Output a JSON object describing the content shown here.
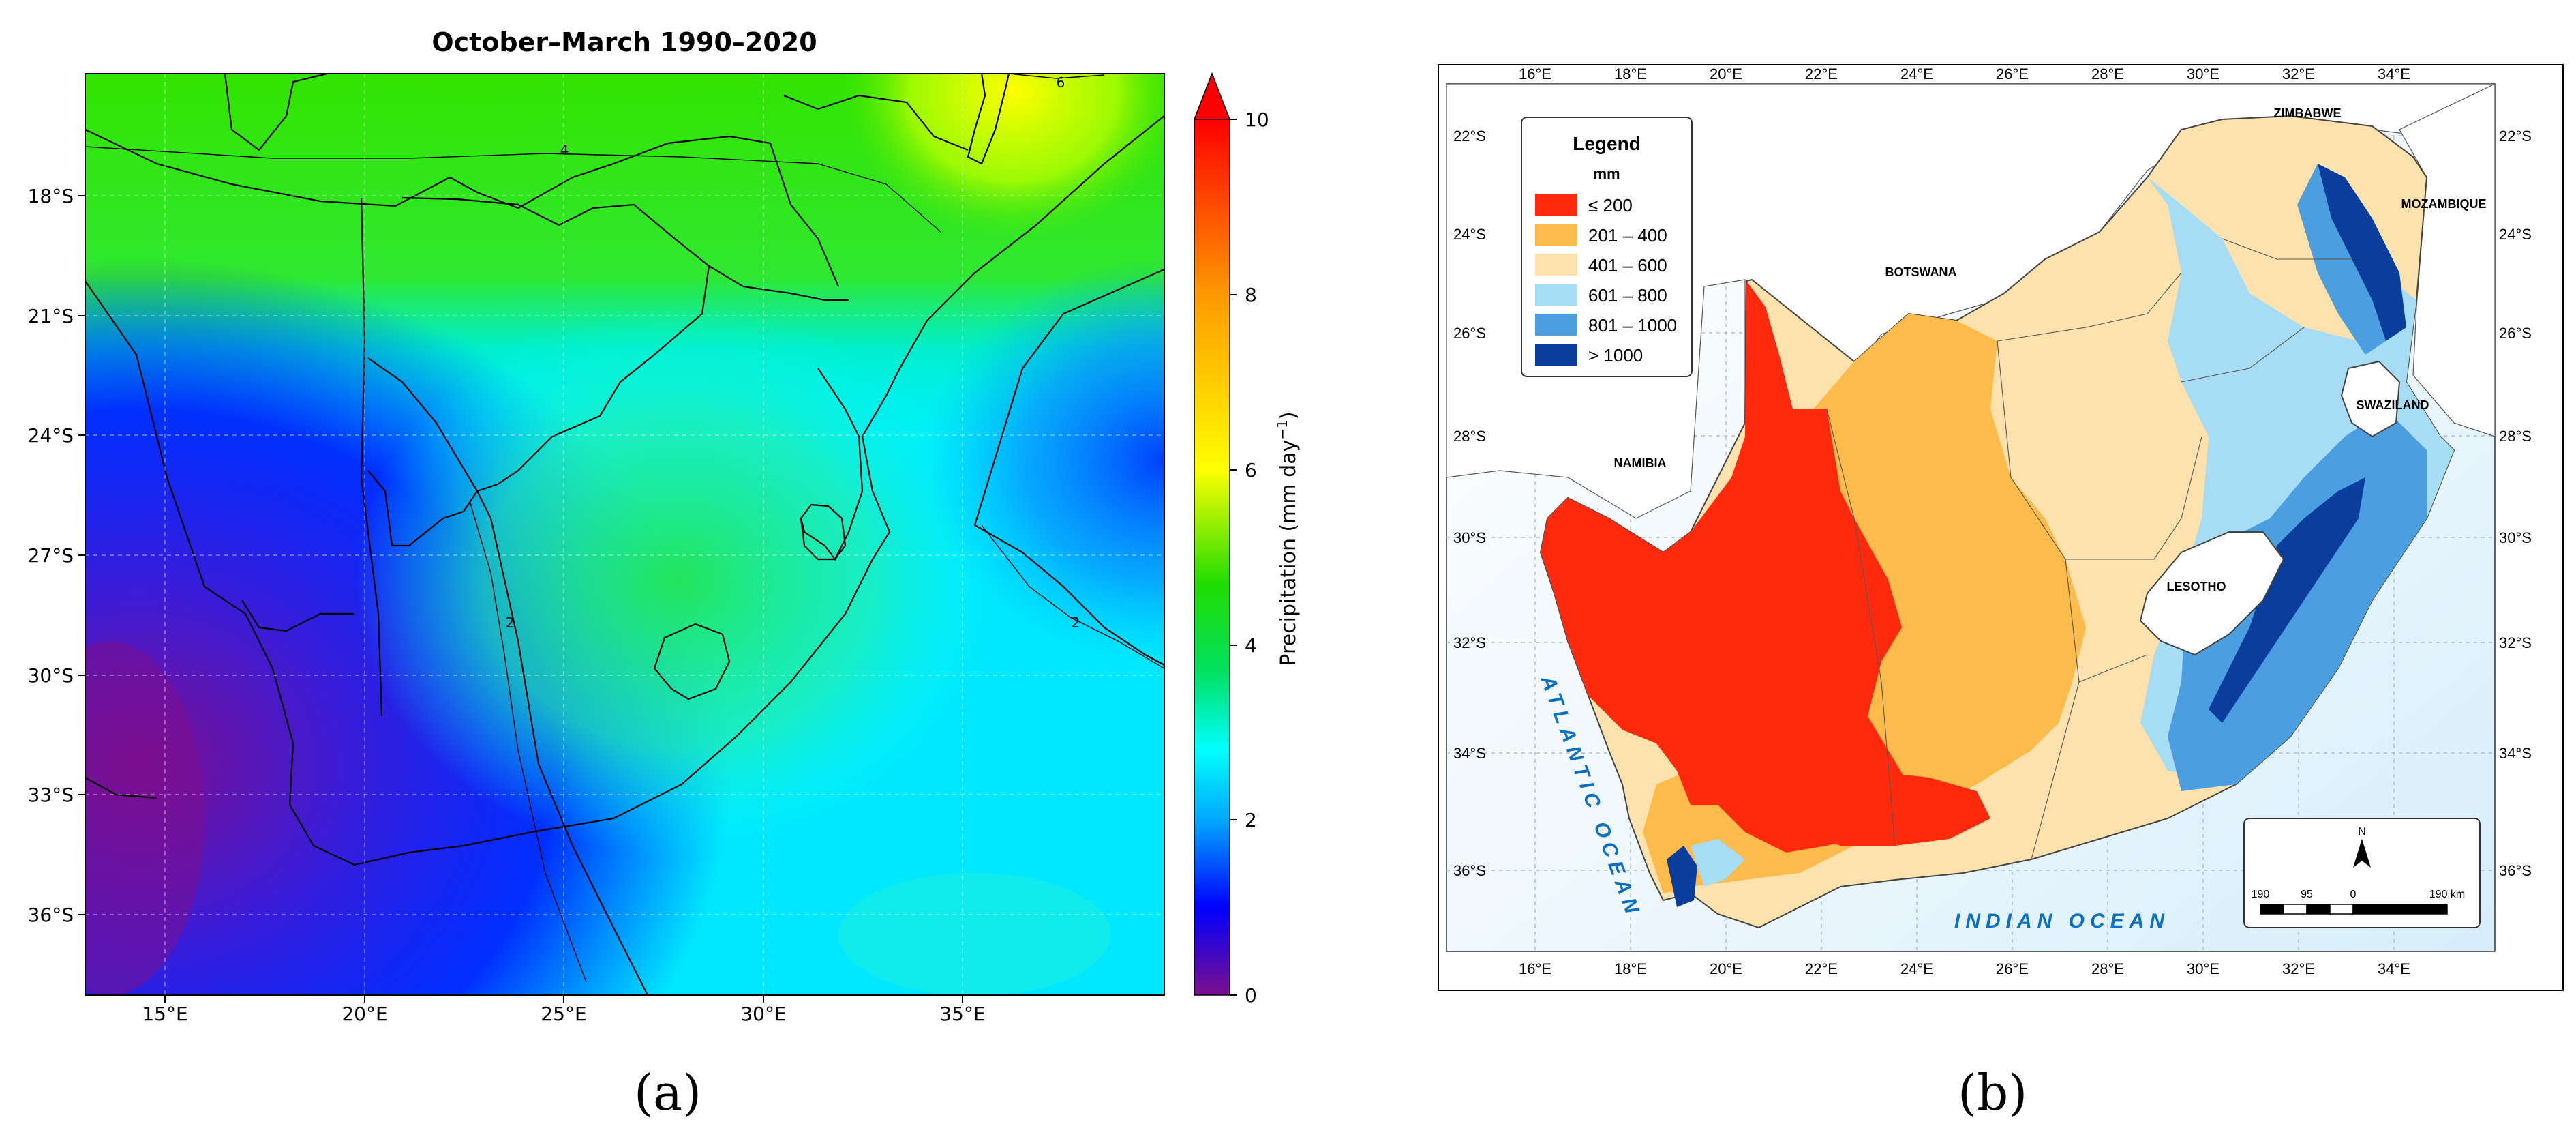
{
  "panel_a": {
    "caption": "(a)",
    "title": "October–March 1990–2020",
    "x_ticks": [
      "15°E",
      "20°E",
      "25°E",
      "30°E",
      "35°E"
    ],
    "y_ticks": [
      "18°S",
      "21°S",
      "24°S",
      "27°S",
      "30°S",
      "33°S",
      "36°S"
    ],
    "colorbar": {
      "label": "Precipitation (mm day",
      "label_sup": "−1",
      "label_close": ")",
      "ticks": [
        "0",
        "2",
        "4",
        "6",
        "8",
        "10"
      ],
      "colors": [
        "#7b0f8e",
        "#0000ff",
        "#00a8ff",
        "#00ffff",
        "#00e060",
        "#22dd00",
        "#ffff00",
        "#ff9900",
        "#ff0000"
      ]
    },
    "contour_labels": [
      "6",
      "4",
      "2",
      "2"
    ]
  },
  "panel_b": {
    "caption": "(b)",
    "x_ticks": [
      "16°E",
      "18°E",
      "20°E",
      "22°E",
      "24°E",
      "26°E",
      "28°E",
      "30°E",
      "32°E",
      "34°E"
    ],
    "y_ticks": [
      "22°S",
      "24°S",
      "26°S",
      "28°S",
      "30°S",
      "32°S",
      "34°S",
      "36°S"
    ],
    "legend": {
      "title": "Legend",
      "unit": "mm",
      "items": [
        {
          "label": "≤ 200",
          "color": "#ff2a0d"
        },
        {
          "label": "201 – 400",
          "color": "#fdbb4b"
        },
        {
          "label": "401 – 600",
          "color": "#fde2ad"
        },
        {
          "label": "601 – 800",
          "color": "#a7dcf5"
        },
        {
          "label": "801 – 1000",
          "color": "#4b9fe0"
        },
        {
          "label": "> 1000",
          "color": "#0a3d9c"
        }
      ]
    },
    "place_labels": {
      "zimbabwe": "ZIMBABWE",
      "mozambique": "MOZAMBIQUE",
      "botswana": "BOTSWANA",
      "namibia": "NAMIBIA",
      "swaziland": "SWAZILAND",
      "lesotho": "LESOTHO"
    },
    "ocean_labels": {
      "atlantic": "ATLANTIC OCEAN",
      "indian": "INDIAN OCEAN"
    },
    "scale_bar": {
      "north": "N",
      "labels": [
        "190",
        "95",
        "0",
        "190 km"
      ]
    }
  }
}
